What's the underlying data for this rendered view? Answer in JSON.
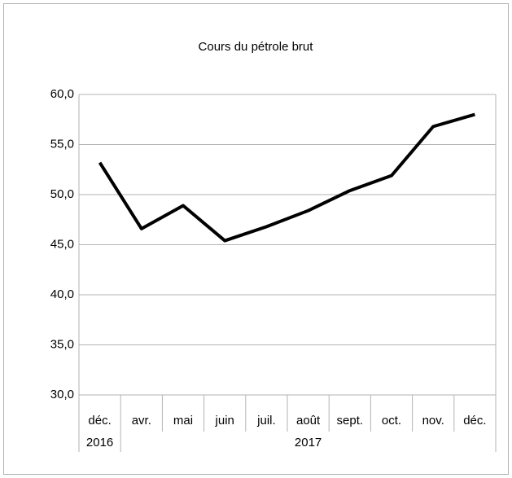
{
  "chart_data": {
    "type": "line",
    "title": "Cours du pétrole brut",
    "groups": [
      {
        "name": "2016",
        "categories": [
          "déc."
        ]
      },
      {
        "name": "2017",
        "categories": [
          "avr.",
          "mai",
          "juin",
          "juil.",
          "août",
          "sept.",
          "oct.",
          "nov.",
          "déc."
        ]
      }
    ],
    "values": [
      53.2,
      46.6,
      48.9,
      45.4,
      46.8,
      48.4,
      50.4,
      51.9,
      56.8,
      58.0
    ],
    "color": "#000000",
    "ylim": [
      30,
      60
    ],
    "yticks": [
      {
        "value": 30,
        "label": "30,0"
      },
      {
        "value": 35,
        "label": "35,0"
      },
      {
        "value": 40,
        "label": "40,0"
      },
      {
        "value": 45,
        "label": "45,0"
      },
      {
        "value": 50,
        "label": "50,0"
      },
      {
        "value": 55,
        "label": "55,0"
      },
      {
        "value": 60,
        "label": "60,0"
      }
    ],
    "grid": true
  }
}
